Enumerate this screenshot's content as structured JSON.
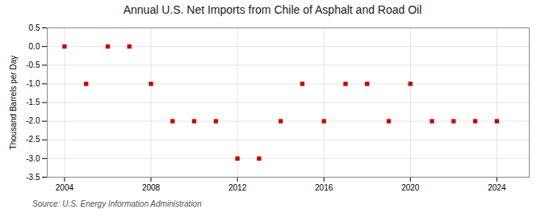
{
  "chart_data": {
    "type": "scatter",
    "title": "Annual U.S. Net Imports from Chile of Asphalt and Road Oil",
    "ylabel": "Thousand Barrels per Day",
    "source": "Source: U.S. Energy Information Administration",
    "x": [
      2004,
      2005,
      2006,
      2007,
      2008,
      2009,
      2010,
      2011,
      2012,
      2013,
      2014,
      2015,
      2016,
      2017,
      2018,
      2019,
      2020,
      2021,
      2022,
      2023,
      2024
    ],
    "values": [
      0.0,
      -1.0,
      0.0,
      0.0,
      -1.0,
      -2.0,
      -2.0,
      -2.0,
      -3.0,
      -3.0,
      -2.0,
      -1.0,
      -2.0,
      -1.0,
      -1.0,
      -2.0,
      -1.0,
      -2.0,
      -2.0,
      -2.0,
      -2.0
    ],
    "xlim": [
      2003.2,
      2025.5
    ],
    "xticks": [
      2004,
      2008,
      2012,
      2016,
      2020,
      2024
    ],
    "ylim": [
      -3.5,
      0.5
    ],
    "yticks": [
      0.5,
      {
        "value": 0,
        "label": "0.0"
      },
      -0.5,
      {
        "value": -1,
        "label": "-1.0"
      },
      -1.5,
      {
        "value": -2,
        "label": "-2.0"
      },
      -2.5,
      {
        "value": -3,
        "label": "-3.0"
      },
      -3.5
    ],
    "color": "#cc0000",
    "marker": "square",
    "grid": true
  }
}
